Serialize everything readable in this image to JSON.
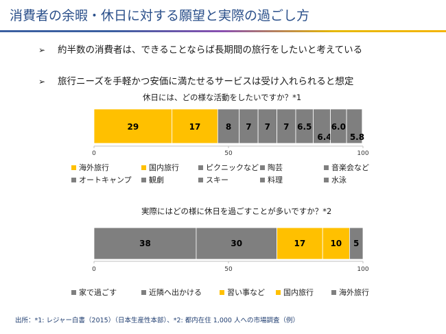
{
  "title": "消費者の余暇・休日に対する願望と実際の過ごし方",
  "bullets": [
    {
      "marker": "➢",
      "text": "約半数の消費者は、できることならば長期間の旅行をしたいと考えている"
    },
    {
      "marker": "➢",
      "text": "旅行ニーズを手軽かつ安価に満たせるサービスは受け入れられると想定"
    }
  ],
  "colors": {
    "gold": "#FFC000",
    "gray": "#7F7F7F"
  },
  "chart_data": [
    {
      "type": "bar",
      "orientation": "horizontal-stacked",
      "title": "休日には、どの様な活動をしたいですか？*1",
      "xlim": [
        0,
        100
      ],
      "ticks": [
        "0",
        "50",
        "100"
      ],
      "series": [
        {
          "name": "海外旅行",
          "value": 29,
          "label": "29",
          "color": "#FFC000"
        },
        {
          "name": "国内旅行",
          "value": 17,
          "label": "17",
          "color": "#FFC000"
        },
        {
          "name": "ピクニックなど",
          "value": 8,
          "label": "8",
          "color": "#7F7F7F"
        },
        {
          "name": "陶芸",
          "value": 7,
          "label": "7",
          "color": "#7F7F7F"
        },
        {
          "name": "音楽会など",
          "value": 7,
          "label": "7",
          "color": "#7F7F7F"
        },
        {
          "name": "オートキャンプ",
          "value": 7,
          "label": "7",
          "color": "#7F7F7F"
        },
        {
          "name": "観劇",
          "value": 6.5,
          "label": "6.5",
          "color": "#7F7F7F"
        },
        {
          "name": "スキー",
          "value": 6.4,
          "label": "6.4",
          "color": "#7F7F7F"
        },
        {
          "name": "料理",
          "value": 6.0,
          "label": "6.0",
          "color": "#7F7F7F"
        },
        {
          "name": "水泳",
          "value": 5.8,
          "label": "5.8",
          "color": "#7F7F7F"
        }
      ]
    },
    {
      "type": "bar",
      "orientation": "horizontal-stacked",
      "title": "実際にはどの様に休日を過ごすことが多いですか？*2",
      "xlim": [
        0,
        100
      ],
      "ticks": [
        "0",
        "50",
        "100"
      ],
      "series": [
        {
          "name": "家で過ごす",
          "value": 38,
          "label": "38",
          "color": "#7F7F7F"
        },
        {
          "name": "近隣へ出かける",
          "value": 30,
          "label": "30",
          "color": "#7F7F7F"
        },
        {
          "name": "習い事など",
          "value": 17,
          "label": "17",
          "color": "#FFC000"
        },
        {
          "name": "国内旅行",
          "value": 10,
          "label": "10",
          "color": "#FFC000"
        },
        {
          "name": "海外旅行",
          "value": 5,
          "label": "5",
          "color": "#7F7F7F"
        }
      ]
    }
  ],
  "source": "出所：*1: レジャー白書（2015）（日本生産性本部）、*2: 都内在住 1,000 人への市場調査（例）"
}
